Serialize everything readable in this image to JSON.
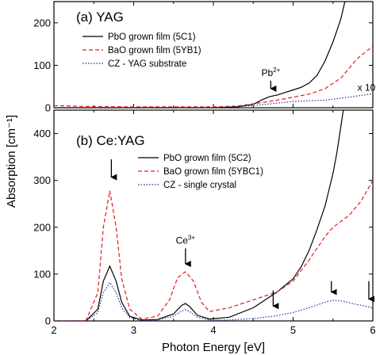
{
  "chart_data": [
    {
      "panel_label": "(a)",
      "panel_title": "YAG",
      "type": "line",
      "xlabel": "Photon Energy [eV]",
      "ylabel": "Absorption [cm⁻¹]",
      "xlim": [
        2,
        6
      ],
      "ylim": [
        0,
        250
      ],
      "yticks": [
        0,
        100,
        200
      ],
      "xticks": [
        2,
        3,
        4,
        5,
        6
      ],
      "legend_position": "upper-left",
      "series": [
        {
          "name": "PbO grown film (5C1)",
          "color": "#000000",
          "style": "solid",
          "x": [
            2.0,
            4.0,
            4.3,
            4.5,
            4.6,
            4.7,
            4.8,
            4.9,
            5.0,
            5.1,
            5.2,
            5.3,
            5.4,
            5.5,
            5.6,
            5.65
          ],
          "y": [
            0,
            0,
            2,
            8,
            18,
            26,
            30,
            36,
            42,
            48,
            58,
            76,
            110,
            155,
            210,
            250
          ]
        },
        {
          "name": "BaO grown film (5YB1)",
          "color": "#e31a1c",
          "style": "dashed",
          "x": [
            2.0,
            2.4,
            3.0,
            3.5,
            4.0,
            4.3,
            4.6,
            4.8,
            5.0,
            5.2,
            5.4,
            5.6,
            5.8,
            6.0
          ],
          "y": [
            5,
            3,
            2,
            2,
            2,
            4,
            12,
            18,
            25,
            32,
            45,
            70,
            115,
            145
          ]
        },
        {
          "name": "CZ - YAG substrate",
          "color": "#1f2fa8",
          "style": "dotted",
          "x": [
            2.0,
            4.0,
            4.5,
            5.0,
            5.4,
            5.7,
            6.0
          ],
          "y": [
            0,
            0,
            5,
            15,
            18,
            25,
            33
          ]
        }
      ],
      "annotations": [
        {
          "text": "Pb",
          "sup": "2+",
          "x": 4.72,
          "y": 75,
          "arrow_to": [
            4.72,
            32
          ]
        },
        {
          "text": "x 10",
          "x": 5.92,
          "y": 40
        }
      ]
    },
    {
      "panel_label": "(b)",
      "panel_title": "Ce:YAG",
      "type": "line",
      "xlabel": "Photon Energy [eV]",
      "ylabel": "Absorption [cm⁻¹]",
      "xlim": [
        2,
        6
      ],
      "ylim": [
        0,
        450
      ],
      "yticks": [
        0,
        100,
        200,
        300,
        400
      ],
      "xticks": [
        2,
        3,
        4,
        5,
        6
      ],
      "legend_position": "upper-right",
      "series": [
        {
          "name": "PbO grown film (5C2)",
          "color": "#000000",
          "style": "solid",
          "x": [
            2.0,
            2.4,
            2.55,
            2.62,
            2.7,
            2.78,
            2.85,
            2.95,
            3.1,
            3.3,
            3.5,
            3.6,
            3.65,
            3.7,
            3.8,
            3.95,
            4.2,
            4.5,
            4.8,
            5.0,
            5.1,
            5.2,
            5.3,
            5.4,
            5.5,
            5.55,
            5.63
          ],
          "y": [
            0,
            0,
            25,
            85,
            117,
            85,
            40,
            10,
            2,
            3,
            15,
            33,
            37,
            31,
            12,
            4,
            8,
            28,
            62,
            90,
            115,
            150,
            195,
            245,
            315,
            360,
            450
          ]
        },
        {
          "name": "BaO grown film (5YBC1)",
          "color": "#e31a1c",
          "style": "dashed",
          "x": [
            2.0,
            2.4,
            2.55,
            2.62,
            2.7,
            2.78,
            2.85,
            2.95,
            3.1,
            3.3,
            3.45,
            3.55,
            3.65,
            3.75,
            3.85,
            3.95,
            4.2,
            4.5,
            4.8,
            5.0,
            5.2,
            5.4,
            5.5,
            5.7,
            5.85,
            6.0
          ],
          "y": [
            0,
            0,
            60,
            200,
            278,
            200,
            90,
            25,
            4,
            10,
            45,
            92,
            105,
            85,
            40,
            20,
            28,
            45,
            62,
            85,
            130,
            180,
            200,
            225,
            255,
            300
          ]
        },
        {
          "name": "CZ - single crystal",
          "color": "#1f2fa8",
          "style": "dotted",
          "x": [
            2.0,
            2.4,
            2.55,
            2.62,
            2.7,
            2.78,
            2.85,
            2.95,
            3.1,
            3.3,
            3.5,
            3.6,
            3.65,
            3.7,
            3.8,
            3.95,
            4.2,
            4.5,
            4.75,
            5.0,
            5.2,
            5.4,
            5.5,
            5.6,
            5.8,
            6.0
          ],
          "y": [
            0,
            0,
            18,
            60,
            82,
            60,
            28,
            7,
            1,
            2,
            10,
            21,
            24,
            20,
            8,
            2,
            2,
            5,
            10,
            18,
            28,
            40,
            44,
            43,
            35,
            28
          ]
        }
      ],
      "annotations": [
        {
          "text": "Ce",
          "sup": "3+",
          "x": 3.65,
          "y": 165,
          "arrow_to": [
            3.65,
            110
          ]
        },
        {
          "text": "",
          "x": 2.72,
          "y": 345,
          "arrow_to": [
            2.72,
            295
          ]
        },
        {
          "text": "",
          "x": 4.75,
          "y": 65,
          "arrow_to": [
            4.75,
            20
          ]
        },
        {
          "text": "",
          "x": 5.48,
          "y": 85,
          "arrow_to": [
            5.48,
            50
          ]
        },
        {
          "text": "",
          "x": 5.95,
          "y": 85,
          "arrow_to": [
            5.95,
            35
          ]
        }
      ]
    }
  ]
}
